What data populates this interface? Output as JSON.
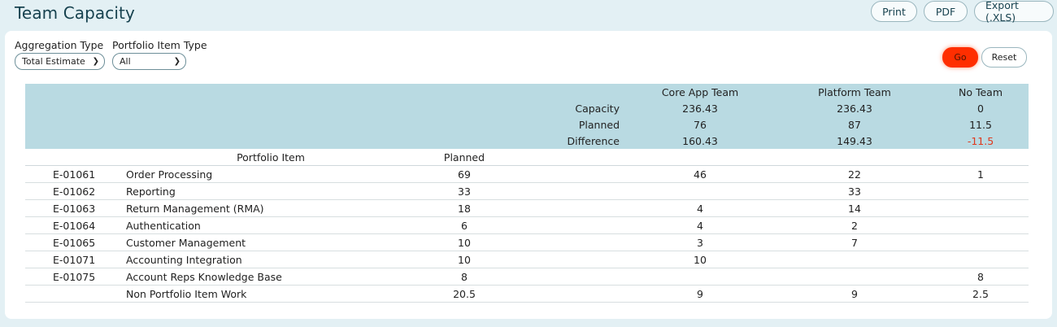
{
  "header": {
    "title": "Team Capacity",
    "actions": {
      "print": "Print",
      "pdf": "PDF",
      "export": "Export (.XLS)"
    }
  },
  "filters": {
    "aggregation": {
      "label": "Aggregation Type",
      "value": "Total Estimate"
    },
    "portfolio_type": {
      "label": "Portfolio Item Type",
      "value": "All"
    }
  },
  "buttons": {
    "go": "Go",
    "reset": "Reset"
  },
  "table": {
    "teams": [
      "Core App Team",
      "Platform Team",
      "No Team"
    ],
    "summary": [
      {
        "label": "Capacity",
        "values": [
          "236.43",
          "236.43",
          "0"
        ]
      },
      {
        "label": "Planned",
        "values": [
          "76",
          "87",
          "11.5"
        ]
      },
      {
        "label": "Difference",
        "values": [
          "160.43",
          "149.43",
          "-11.5"
        ]
      }
    ],
    "columns": {
      "portfolio_item": "Portfolio Item",
      "planned": "Planned"
    },
    "rows": [
      {
        "id": "E-01061",
        "name": "Order Processing",
        "planned": "69",
        "t1": "46",
        "t2": "22",
        "t3": "1"
      },
      {
        "id": "E-01062",
        "name": "Reporting",
        "planned": "33",
        "t1": "",
        "t2": "33",
        "t3": ""
      },
      {
        "id": "E-01063",
        "name": "Return Management (RMA)",
        "planned": "18",
        "t1": "4",
        "t2": "14",
        "t3": ""
      },
      {
        "id": "E-01064",
        "name": "Authentication",
        "planned": "6",
        "t1": "4",
        "t2": "2",
        "t3": ""
      },
      {
        "id": "E-01065",
        "name": "Customer Management",
        "planned": "10",
        "t1": "3",
        "t2": "7",
        "t3": ""
      },
      {
        "id": "E-01071",
        "name": "Accounting Integration",
        "planned": "10",
        "t1": "10",
        "t2": "",
        "t3": ""
      },
      {
        "id": "E-01075",
        "name": "Account Reps Knowledge Base",
        "planned": "8",
        "t1": "",
        "t2": "",
        "t3": "8"
      },
      {
        "id": "",
        "name": "Non Portfolio Item Work",
        "planned": "20.5",
        "t1": "9",
        "t2": "9",
        "t3": "2.5"
      }
    ]
  },
  "colors": {
    "header_band": "#b9dae2",
    "go_button": "#ff2e00",
    "negative": "#e0381c",
    "page_bg": "#e3f0f4"
  }
}
